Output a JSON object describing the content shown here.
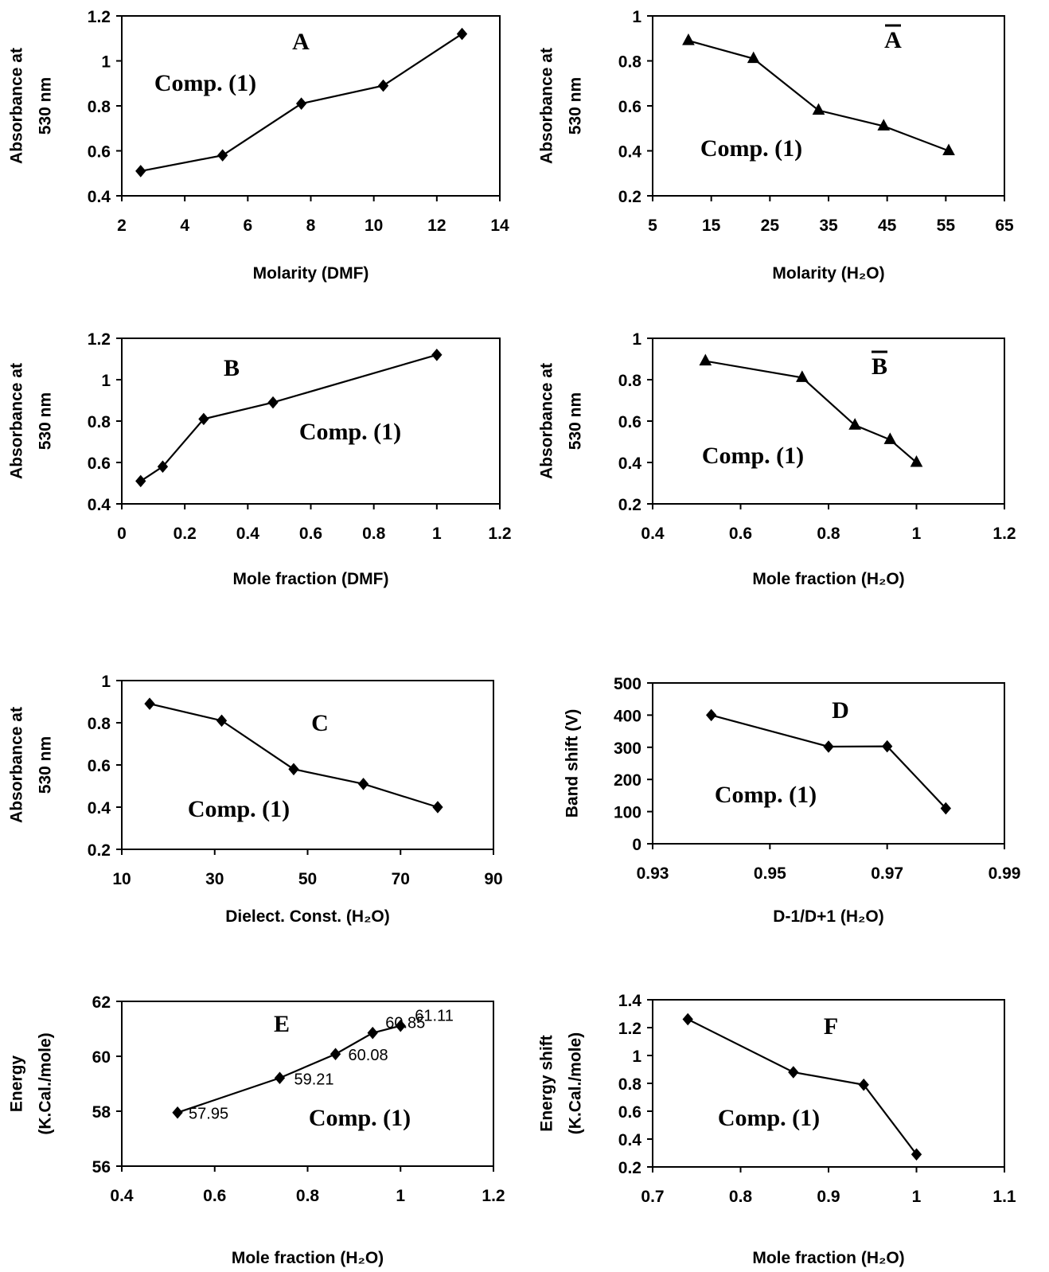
{
  "chart_data": [
    {
      "panel": "A",
      "type": "line",
      "marker": "diamond",
      "annotation": "Comp. (1)",
      "xlabel": "Molarity (DMF)",
      "ylabel": [
        "Absorbance at",
        "530 nm"
      ],
      "xlim": [
        2,
        14
      ],
      "xticks": [
        2,
        4,
        6,
        8,
        10,
        12,
        14
      ],
      "ylim": [
        0.4,
        1.2
      ],
      "yticks": [
        0.4,
        0.6,
        0.8,
        1,
        1.2
      ],
      "x": [
        2.6,
        5.2,
        7.7,
        10.3,
        12.8
      ],
      "y": [
        0.51,
        0.58,
        0.81,
        0.89,
        1.12
      ]
    },
    {
      "panel": "Ā",
      "type": "line",
      "marker": "triangle",
      "annotation": "Comp. (1)",
      "xlabel": "Molarity (H₂O)",
      "ylabel": [
        "Absorbance at",
        "530 nm"
      ],
      "xlim": [
        5,
        65
      ],
      "xticks": [
        5,
        15,
        25,
        35,
        45,
        55,
        65
      ],
      "ylim": [
        0.2,
        1
      ],
      "yticks": [
        0.2,
        0.4,
        0.6,
        0.8,
        1
      ],
      "x": [
        11.1,
        22.2,
        33.3,
        44.4,
        55.5
      ],
      "y": [
        0.89,
        0.81,
        0.58,
        0.51,
        0.4
      ]
    },
    {
      "panel": "B",
      "type": "line",
      "marker": "diamond",
      "annotation": "Comp. (1)",
      "xlabel": "Mole fraction (DMF)",
      "ylabel": [
        "Absorbance at",
        "530 nm"
      ],
      "xlim": [
        0,
        1.2
      ],
      "xticks": [
        0,
        0.2,
        0.4,
        0.6,
        0.8,
        1,
        1.2
      ],
      "ylim": [
        0.4,
        1.2
      ],
      "yticks": [
        0.4,
        0.6,
        0.8,
        1,
        1.2
      ],
      "x": [
        0.06,
        0.13,
        0.26,
        0.48,
        1.0
      ],
      "y": [
        0.51,
        0.58,
        0.81,
        0.89,
        1.12
      ]
    },
    {
      "panel": "B̄",
      "type": "line",
      "marker": "triangle",
      "annotation": "Comp. (1)",
      "xlabel": "Mole fraction (H₂O)",
      "ylabel": [
        "Absorbance at",
        "530 nm"
      ],
      "xlim": [
        0.4,
        1.2
      ],
      "xticks": [
        0.4,
        0.6,
        0.8,
        1,
        1.2
      ],
      "ylim": [
        0.2,
        1
      ],
      "yticks": [
        0.2,
        0.4,
        0.6,
        0.8,
        1
      ],
      "x": [
        0.52,
        0.74,
        0.86,
        0.94,
        1.0
      ],
      "y": [
        0.89,
        0.81,
        0.58,
        0.51,
        0.4
      ]
    },
    {
      "panel": "C",
      "type": "line",
      "marker": "diamond",
      "annotation": "Comp. (1)",
      "xlabel": "Dielect. Const. (H₂O)",
      "ylabel": [
        "Absorbance at",
        "530 nm"
      ],
      "xlim": [
        10,
        90
      ],
      "xticks": [
        10,
        30,
        50,
        70,
        90
      ],
      "ylim": [
        0.2,
        1
      ],
      "yticks": [
        0.2,
        0.4,
        0.6,
        0.8,
        1
      ],
      "x": [
        16,
        31.5,
        47,
        62,
        78
      ],
      "y": [
        0.89,
        0.81,
        0.58,
        0.51,
        0.4
      ]
    },
    {
      "panel": "D",
      "type": "line",
      "marker": "diamond",
      "annotation": "Comp. (1)",
      "xlabel": "D-1/D+1 (H₂O)",
      "ylabel": [
        "Band shift (V)"
      ],
      "xlim": [
        0.93,
        0.99
      ],
      "xticks": [
        0.93,
        0.95,
        0.97,
        0.99
      ],
      "ylim": [
        0,
        500
      ],
      "yticks": [
        0,
        100,
        200,
        300,
        400,
        500
      ],
      "x": [
        0.94,
        0.96,
        0.97,
        0.98
      ],
      "y": [
        400,
        302,
        303,
        110
      ]
    },
    {
      "panel": "E",
      "type": "line",
      "marker": "diamond",
      "annotation": "Comp. (1)",
      "xlabel": "Mole fraction (H₂O)",
      "ylabel": [
        "Energy",
        "(K.Cal./mole)"
      ],
      "xlim": [
        0.4,
        1.2
      ],
      "xticks": [
        0.4,
        0.6,
        0.8,
        1,
        1.2
      ],
      "ylim": [
        56,
        62
      ],
      "yticks": [
        56,
        58,
        60,
        62
      ],
      "x": [
        0.52,
        0.74,
        0.86,
        0.94,
        1.0
      ],
      "y": [
        57.95,
        59.21,
        60.08,
        60.85,
        61.11
      ],
      "data_labels": [
        "57.95",
        "59.21",
        "60.08",
        "60.85",
        "61.11"
      ]
    },
    {
      "panel": "F",
      "type": "line",
      "marker": "diamond",
      "annotation": "Comp. (1)",
      "xlabel": "Mole fraction (H₂O)",
      "ylabel": [
        "Energy shift",
        "(K.Cal./mole)"
      ],
      "xlim": [
        0.7,
        1.1
      ],
      "xticks": [
        0.7,
        0.8,
        0.9,
        1,
        1.1
      ],
      "ylim": [
        0.2,
        1.4
      ],
      "yticks": [
        0.2,
        0.4,
        0.6,
        0.8,
        1,
        1.2,
        1.4
      ],
      "x": [
        0.74,
        0.86,
        0.94,
        1.0
      ],
      "y": [
        1.26,
        0.88,
        0.79,
        0.29
      ]
    }
  ]
}
